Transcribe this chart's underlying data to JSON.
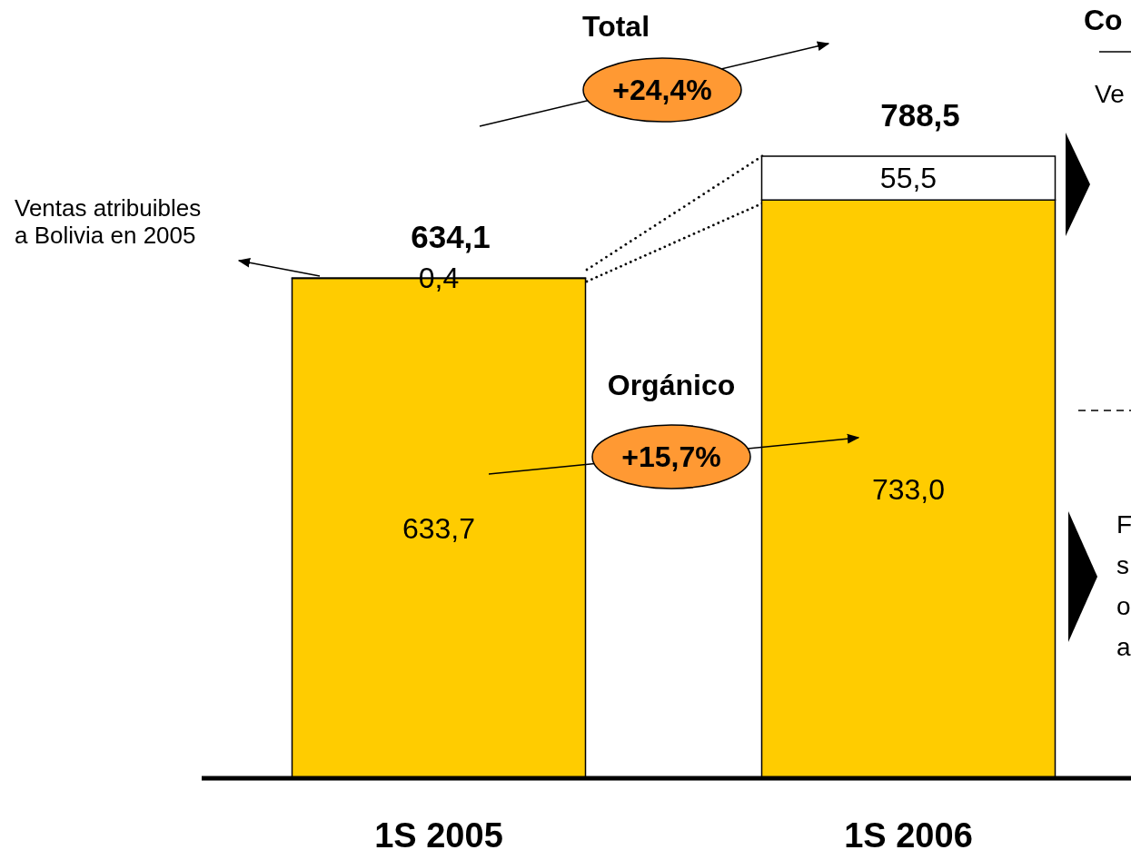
{
  "chart_data": {
    "type": "bar",
    "stacked": true,
    "categories": [
      "1S 2005",
      "1S 2006"
    ],
    "series": [
      {
        "color": "#ffcc00",
        "values": [
          633.7,
          733.0
        ],
        "value_labels": [
          "633,7",
          "733,0"
        ]
      },
      {
        "color": "#ffffff",
        "values": [
          0.4,
          55.5
        ],
        "value_labels": [
          "0,4",
          "55,5"
        ]
      }
    ],
    "totals": [
      "634,1",
      "788,5"
    ],
    "annotations": [
      "Total",
      "+24,4%",
      "Orgánico",
      "+15,7%",
      "Ventas atribuibles\na Bolivia en 2005",
      "Co",
      "Ve",
      "F",
      "s",
      "o",
      "a"
    ]
  }
}
